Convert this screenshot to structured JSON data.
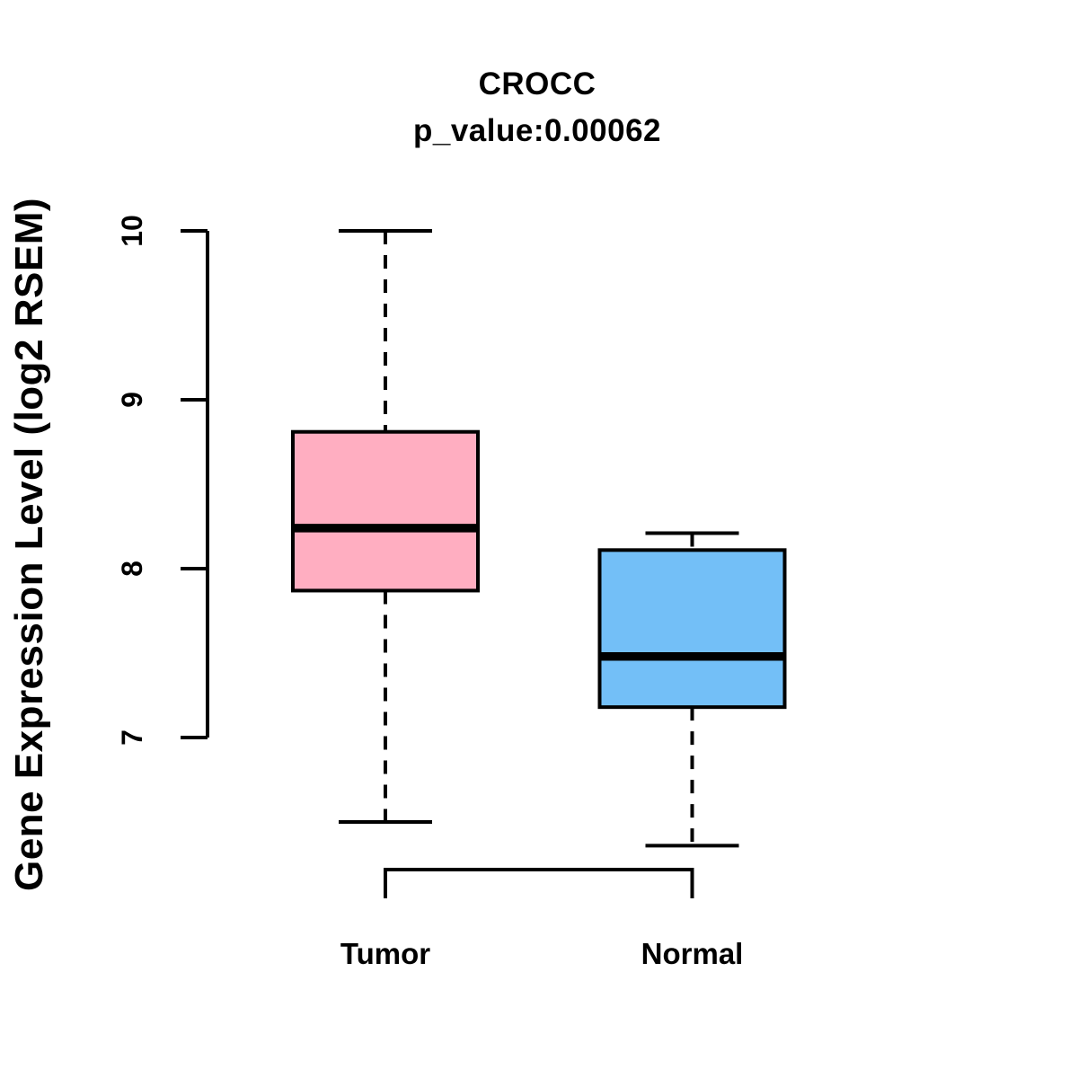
{
  "figure": {
    "background": "#ffffff",
    "line_color": "#000000"
  },
  "chart_data": {
    "type": "box",
    "title": "CROCC",
    "subtitle": "p_value:0.00062",
    "ylabel": "Gene Expression Level (log2 RSEM)",
    "xlabel": "",
    "y_ticks": [
      7,
      8,
      9,
      10
    ],
    "ylim": [
      7,
      10
    ],
    "grid": false,
    "legend": false,
    "categories": [
      "Tumor",
      "Normal"
    ],
    "series": [
      {
        "name": "Tumor",
        "color": "#ffaec1",
        "min": 6.5,
        "q1": 7.87,
        "median": 8.24,
        "q3": 8.81,
        "max": 10.0
      },
      {
        "name": "Normal",
        "color": "#73bff7",
        "min": 6.36,
        "q1": 7.18,
        "median": 7.48,
        "q3": 8.11,
        "max": 8.21
      }
    ]
  }
}
